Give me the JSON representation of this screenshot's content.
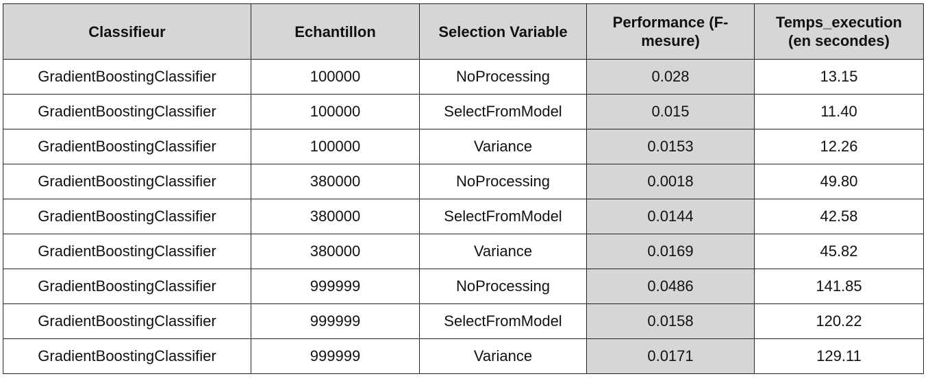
{
  "table": {
    "headers": [
      "Classifieur",
      "Echantillon",
      "Selection Variable",
      "Performance (F-\nmesure)",
      "Temps_execution\n(en secondes)"
    ],
    "rows": [
      [
        "GradientBoostingClassifier",
        "100000",
        "NoProcessing",
        "0.028",
        "13.15"
      ],
      [
        "GradientBoostingClassifier",
        "100000",
        "SelectFromModel",
        "0.015",
        "11.40"
      ],
      [
        "GradientBoostingClassifier",
        "100000",
        "Variance",
        "0.0153",
        "12.26"
      ],
      [
        "GradientBoostingClassifier",
        "380000",
        "NoProcessing",
        "0.0018",
        "49.80"
      ],
      [
        "GradientBoostingClassifier",
        "380000",
        "SelectFromModel",
        "0.0144",
        "42.58"
      ],
      [
        "GradientBoostingClassifier",
        "380000",
        "Variance",
        "0.0169",
        "45.82"
      ],
      [
        "GradientBoostingClassifier",
        "999999",
        "NoProcessing",
        "0.0486",
        "141.85"
      ],
      [
        "GradientBoostingClassifier",
        "999999",
        "SelectFromModel",
        "0.0158",
        "120.22"
      ],
      [
        "GradientBoostingClassifier",
        "999999",
        "Variance",
        "0.0171",
        "129.11"
      ]
    ]
  },
  "colors": {
    "header_bg": "#d6d6d6",
    "highlight_column_bg": "#d6d6d6",
    "border": "#222222",
    "text": "#111111"
  }
}
